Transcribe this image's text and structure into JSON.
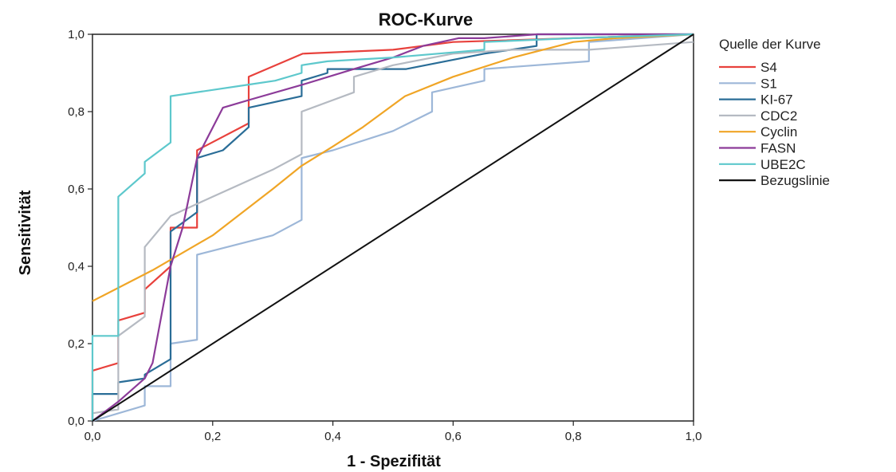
{
  "chart_data": {
    "type": "line",
    "title": "ROC-Kurve",
    "xlabel": "1 - Spezifität",
    "ylabel": "Sensitivität",
    "xlim": [
      0,
      1
    ],
    "ylim": [
      0,
      1
    ],
    "x_ticks": [
      "0,0",
      "0,2",
      "0,4",
      "0,6",
      "0,8",
      "1,0"
    ],
    "y_ticks": [
      "0,0",
      "0,2",
      "0,4",
      "0,6",
      "0,8",
      "1,0"
    ],
    "grid": false,
    "legend": {
      "title": "Quelle der Kurve",
      "position": "right"
    },
    "series": [
      {
        "name": "S4",
        "color": "#e8413c",
        "points": [
          [
            0,
            0
          ],
          [
            0,
            0.13
          ],
          [
            0.043,
            0.15
          ],
          [
            0.043,
            0.26
          ],
          [
            0.087,
            0.28
          ],
          [
            0.087,
            0.34
          ],
          [
            0.13,
            0.4
          ],
          [
            0.13,
            0.5
          ],
          [
            0.174,
            0.5
          ],
          [
            0.174,
            0.7
          ],
          [
            0.26,
            0.77
          ],
          [
            0.26,
            0.89
          ],
          [
            0.35,
            0.95
          ],
          [
            0.5,
            0.96
          ],
          [
            0.6,
            0.98
          ],
          [
            0.8,
            0.99
          ],
          [
            1,
            1
          ]
        ]
      },
      {
        "name": "S1",
        "color": "#9db7d8",
        "points": [
          [
            0,
            0
          ],
          [
            0.087,
            0.04
          ],
          [
            0.087,
            0.09
          ],
          [
            0.13,
            0.09
          ],
          [
            0.13,
            0.2
          ],
          [
            0.174,
            0.21
          ],
          [
            0.174,
            0.43
          ],
          [
            0.3,
            0.48
          ],
          [
            0.348,
            0.52
          ],
          [
            0.348,
            0.68
          ],
          [
            0.4,
            0.7
          ],
          [
            0.5,
            0.75
          ],
          [
            0.565,
            0.8
          ],
          [
            0.565,
            0.85
          ],
          [
            0.652,
            0.88
          ],
          [
            0.652,
            0.91
          ],
          [
            0.826,
            0.93
          ],
          [
            0.826,
            0.98
          ],
          [
            1,
            1
          ]
        ]
      },
      {
        "name": "KI-67",
        "color": "#2a6d97",
        "points": [
          [
            0,
            0
          ],
          [
            0,
            0.07
          ],
          [
            0.043,
            0.07
          ],
          [
            0.043,
            0.1
          ],
          [
            0.087,
            0.11
          ],
          [
            0.087,
            0.12
          ],
          [
            0.13,
            0.16
          ],
          [
            0.13,
            0.49
          ],
          [
            0.174,
            0.54
          ],
          [
            0.174,
            0.68
          ],
          [
            0.217,
            0.7
          ],
          [
            0.26,
            0.76
          ],
          [
            0.26,
            0.81
          ],
          [
            0.348,
            0.84
          ],
          [
            0.348,
            0.88
          ],
          [
            0.391,
            0.9
          ],
          [
            0.391,
            0.91
          ],
          [
            0.522,
            0.91
          ],
          [
            0.652,
            0.95
          ],
          [
            0.739,
            0.97
          ],
          [
            0.739,
            1.0
          ],
          [
            1,
            1
          ]
        ]
      },
      {
        "name": "CDC2",
        "color": "#b5bac2",
        "points": [
          [
            0,
            0
          ],
          [
            0,
            0.02
          ],
          [
            0.043,
            0.03
          ],
          [
            0.043,
            0.22
          ],
          [
            0.087,
            0.27
          ],
          [
            0.087,
            0.45
          ],
          [
            0.13,
            0.53
          ],
          [
            0.2,
            0.58
          ],
          [
            0.3,
            0.65
          ],
          [
            0.348,
            0.69
          ],
          [
            0.348,
            0.8
          ],
          [
            0.435,
            0.85
          ],
          [
            0.435,
            0.89
          ],
          [
            0.5,
            0.92
          ],
          [
            0.6,
            0.95
          ],
          [
            0.7,
            0.96
          ],
          [
            0.826,
            0.96
          ],
          [
            1,
            0.98
          ]
        ]
      },
      {
        "name": "Cyclin",
        "color": "#f0a526",
        "points": [
          [
            0,
            0.31
          ],
          [
            0.1,
            0.39
          ],
          [
            0.2,
            0.48
          ],
          [
            0.3,
            0.6
          ],
          [
            0.348,
            0.66
          ],
          [
            0.4,
            0.71
          ],
          [
            0.45,
            0.76
          ],
          [
            0.52,
            0.84
          ],
          [
            0.6,
            0.89
          ],
          [
            0.7,
            0.94
          ],
          [
            0.8,
            0.98
          ],
          [
            0.87,
            0.99
          ],
          [
            1,
            1
          ]
        ]
      },
      {
        "name": "FASN",
        "color": "#8c3b99",
        "points": [
          [
            0,
            0
          ],
          [
            0.043,
            0.05
          ],
          [
            0.087,
            0.11
          ],
          [
            0.1,
            0.15
          ],
          [
            0.13,
            0.4
          ],
          [
            0.15,
            0.5
          ],
          [
            0.174,
            0.68
          ],
          [
            0.217,
            0.81
          ],
          [
            0.26,
            0.83
          ],
          [
            0.35,
            0.87
          ],
          [
            0.435,
            0.91
          ],
          [
            0.5,
            0.94
          ],
          [
            0.55,
            0.97
          ],
          [
            0.609,
            0.99
          ],
          [
            0.652,
            0.99
          ],
          [
            0.74,
            1.0
          ],
          [
            1,
            1
          ]
        ]
      },
      {
        "name": "UBE2C",
        "color": "#5dc8cc",
        "points": [
          [
            0,
            0
          ],
          [
            0,
            0.22
          ],
          [
            0.043,
            0.22
          ],
          [
            0.043,
            0.58
          ],
          [
            0.087,
            0.64
          ],
          [
            0.087,
            0.67
          ],
          [
            0.13,
            0.72
          ],
          [
            0.13,
            0.84
          ],
          [
            0.26,
            0.87
          ],
          [
            0.304,
            0.88
          ],
          [
            0.348,
            0.9
          ],
          [
            0.348,
            0.92
          ],
          [
            0.391,
            0.93
          ],
          [
            0.5,
            0.94
          ],
          [
            0.652,
            0.96
          ],
          [
            0.652,
            0.98
          ],
          [
            0.8,
            0.99
          ],
          [
            1,
            1
          ]
        ]
      },
      {
        "name": "Bezugslinie",
        "color": "#111111",
        "points": [
          [
            0,
            0
          ],
          [
            1,
            1
          ]
        ]
      }
    ]
  }
}
